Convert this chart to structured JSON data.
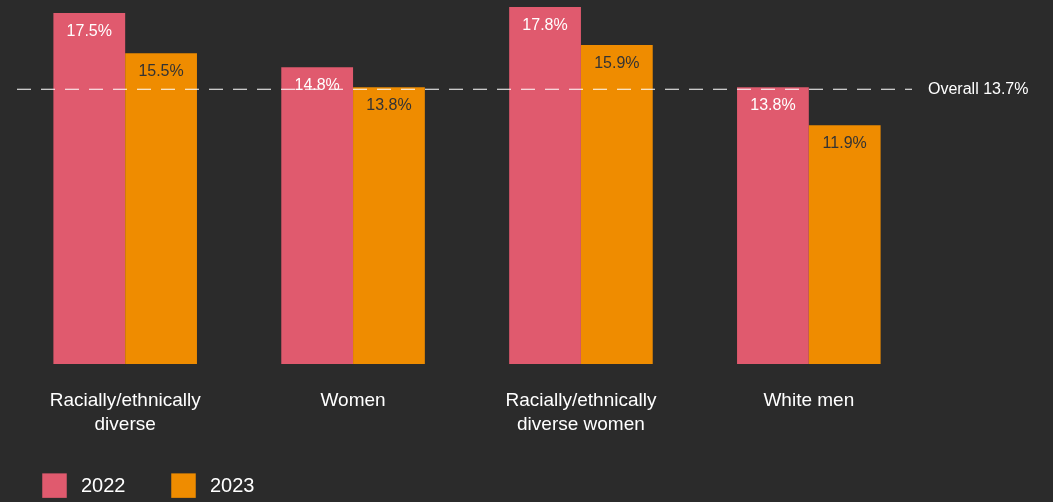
{
  "chart_data": {
    "type": "bar",
    "categories": [
      "Racially/ethnically\ndiverse",
      "Women",
      "Racially/ethnically\ndiverse women",
      "White men"
    ],
    "series": [
      {
        "name": "2022",
        "color": "#e05a6e",
        "values": [
          17.5,
          14.8,
          17.8,
          13.8
        ],
        "value_labels": [
          "17.5%",
          "14.8%",
          "17.8%",
          "13.8%"
        ]
      },
      {
        "name": "2023",
        "color": "#ef8c00",
        "values": [
          15.5,
          13.8,
          15.9,
          11.9
        ],
        "value_labels": [
          "15.5%",
          "13.8%",
          "15.9%",
          "11.9%"
        ]
      }
    ],
    "ref_lines": [
      {
        "axis": "y",
        "value": 13.7,
        "label": "Overall 13.7%",
        "color": "#ffffff",
        "line_style": "dashed"
      }
    ],
    "legend": "bottom",
    "grid": false
  }
}
